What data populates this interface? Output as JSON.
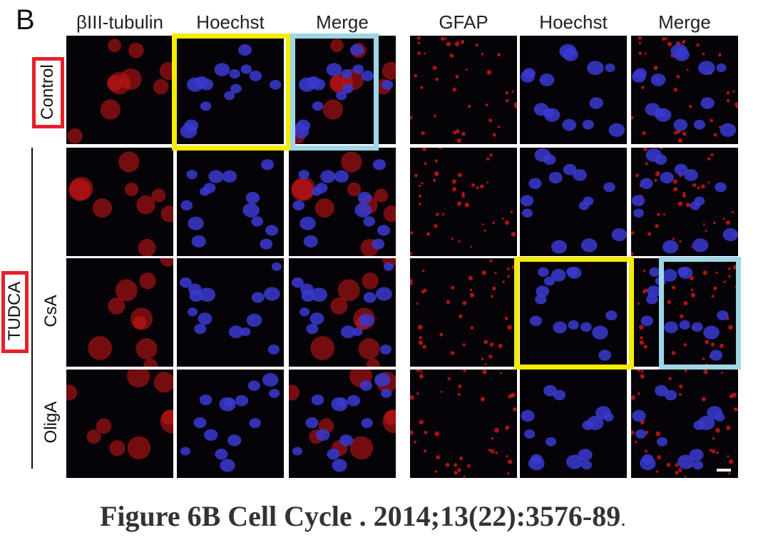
{
  "panel_letter": "B",
  "column_headers": [
    "βIII-tubulin",
    "Hoechst",
    "Merge",
    "GFAP",
    "Hoechst",
    "Merge"
  ],
  "row_labels": {
    "control": "Control",
    "group": "TUDCA",
    "csa": "CsA",
    "oliga": "OligA"
  },
  "caption": "Figure 6B Cell Cycle . 2014;13(22):3576-89",
  "caption_period": ".",
  "colors": {
    "highlight_yellow": "#f5ec00",
    "highlight_cyan": "#9fd6e6",
    "label_box_red": "#e8202a",
    "nuclei": "#3a3ad0",
    "stain": "#d01818"
  }
}
